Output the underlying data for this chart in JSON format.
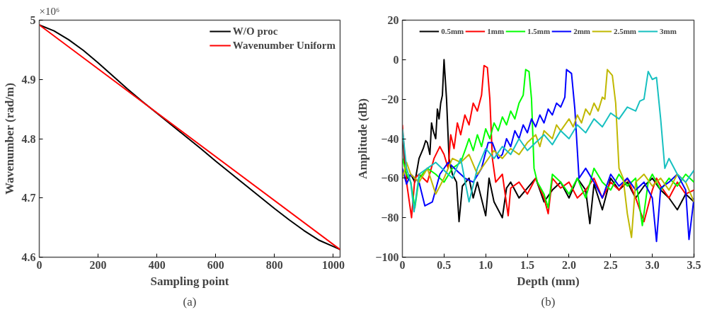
{
  "chart_data": [
    {
      "type": "line",
      "xlabel": "Sampling point",
      "ylabel": "Wavenumber (rad/m)",
      "xlim": [
        0,
        1023
      ],
      "ylim": [
        4.6,
        5
      ],
      "xticks": [
        0,
        200,
        400,
        600,
        800,
        1000
      ],
      "yticks": [
        4.6,
        4.7,
        4.8,
        4.9,
        5
      ],
      "grid": false,
      "legend": "top right",
      "line_style": "solid",
      "marker": "none",
      "annotations": [
        "×10⁶",
        "(a)"
      ],
      "series": [
        {
          "name": "W/O proc",
          "color": "#000000",
          "x": [
            0,
            50,
            100,
            150,
            200,
            250,
            300,
            350,
            400,
            450,
            500,
            550,
            600,
            650,
            700,
            750,
            800,
            850,
            900,
            950,
            1000,
            1023
          ],
          "values": [
            4.992,
            4.982,
            4.967,
            4.949,
            4.928,
            4.906,
            4.884,
            4.863,
            4.843,
            4.823,
            4.803,
            4.783,
            4.762,
            4.742,
            4.722,
            4.702,
            4.682,
            4.663,
            4.645,
            4.629,
            4.618,
            4.613
          ]
        },
        {
          "name": "Wavenumber Uniform",
          "color": "#ff0000",
          "x": [
            0,
            1023
          ],
          "values": [
            4.992,
            4.613
          ]
        }
      ]
    },
    {
      "type": "line",
      "xlabel": "Depth (mm)",
      "ylabel": "Amplitude (dB)",
      "xlim": [
        0,
        3.5
      ],
      "ylim": [
        -100,
        20
      ],
      "xticks": [
        0,
        0.5,
        {
          "value": 1,
          "label": "1.0"
        },
        1.5,
        {
          "value": 2,
          "label": "2.0"
        },
        2.5,
        {
          "value": 3,
          "label": "3.0"
        },
        3.5
      ],
      "yticks": [
        -100,
        -80,
        -60,
        -40,
        -20,
        0,
        20
      ],
      "grid": false,
      "legend": "top",
      "line_style": "solid",
      "marker": "none",
      "annotations": [
        "(b)"
      ],
      "series": [
        {
          "name": "0.5mm",
          "color": "#000000",
          "x": [
            0,
            0.03,
            0.06,
            0.1,
            0.15,
            0.2,
            0.25,
            0.28,
            0.3,
            0.33,
            0.35,
            0.37,
            0.4,
            0.42,
            0.44,
            0.46,
            0.48,
            0.5,
            0.53,
            0.56,
            0.6,
            0.65,
            0.68,
            0.72,
            0.8,
            0.85,
            0.9,
            1.0,
            1.04,
            1.1,
            1.2,
            1.25,
            1.3,
            1.4,
            1.5,
            1.6,
            1.7,
            1.8,
            1.9,
            2.0,
            2.1,
            2.2,
            2.25,
            2.3,
            2.4,
            2.5,
            2.6,
            2.7,
            2.8,
            2.9,
            3.0,
            3.1,
            3.2,
            3.3,
            3.4,
            3.5
          ],
          "values": [
            -35,
            -55,
            -60,
            -58,
            -62,
            -50,
            -45,
            -41,
            -42,
            -48,
            -32,
            -36,
            -40,
            -25,
            -30,
            -22,
            -18,
            0,
            -20,
            -50,
            -58,
            -62,
            -82,
            -64,
            -60,
            -70,
            -62,
            -79,
            -60,
            -72,
            -80,
            -65,
            -62,
            -70,
            -65,
            -60,
            -72,
            -66,
            -62,
            -70,
            -60,
            -66,
            -83,
            -63,
            -76,
            -60,
            -66,
            -62,
            -70,
            -64,
            -60,
            -66,
            -70,
            -76,
            -68,
            -72
          ]
        },
        {
          "name": "1mm",
          "color": "#ff0000",
          "x": [
            0,
            0.05,
            0.11,
            0.15,
            0.2,
            0.3,
            0.38,
            0.45,
            0.5,
            0.55,
            0.58,
            0.62,
            0.66,
            0.7,
            0.75,
            0.8,
            0.85,
            0.9,
            0.95,
            0.98,
            1.02,
            1.05,
            1.08,
            1.12,
            1.2,
            1.27,
            1.3,
            1.4,
            1.5,
            1.6,
            1.7,
            1.75,
            1.8,
            1.9,
            2.0,
            2.1,
            2.2,
            2.3,
            2.4,
            2.5,
            2.6,
            2.7,
            2.8,
            2.9,
            3.0,
            3.05,
            3.1,
            3.2,
            3.3,
            3.4,
            3.5
          ],
          "values": [
            -33,
            -62,
            -80,
            -60,
            -58,
            -62,
            -50,
            -44,
            -48,
            -55,
            -38,
            -45,
            -32,
            -38,
            -28,
            -33,
            -22,
            -26,
            -18,
            -3,
            -4,
            -20,
            -50,
            -62,
            -58,
            -79,
            -65,
            -62,
            -68,
            -60,
            -70,
            -78,
            -60,
            -65,
            -62,
            -70,
            -66,
            -60,
            -70,
            -62,
            -66,
            -60,
            -70,
            -82,
            -66,
            -60,
            -64,
            -70,
            -62,
            -68,
            -66
          ]
        },
        {
          "name": "1.5mm",
          "color": "#00ff00",
          "x": [
            0,
            0.05,
            0.1,
            0.15,
            0.2,
            0.3,
            0.4,
            0.5,
            0.6,
            0.7,
            0.76,
            0.8,
            0.85,
            0.9,
            0.95,
            1.0,
            1.05,
            1.1,
            1.15,
            1.2,
            1.25,
            1.3,
            1.35,
            1.4,
            1.45,
            1.48,
            1.52,
            1.55,
            1.58,
            1.62,
            1.7,
            1.75,
            1.8,
            1.9,
            2.0,
            2.1,
            2.2,
            2.3,
            2.4,
            2.5,
            2.6,
            2.7,
            2.8,
            2.88,
            2.95,
            3.0,
            3.1,
            3.2,
            3.3,
            3.4,
            3.5
          ],
          "values": [
            -50,
            -58,
            -62,
            -75,
            -60,
            -55,
            -58,
            -62,
            -55,
            -52,
            -45,
            -40,
            -46,
            -38,
            -44,
            -35,
            -40,
            -32,
            -36,
            -29,
            -33,
            -26,
            -30,
            -22,
            -18,
            -5,
            -6,
            -20,
            -55,
            -62,
            -68,
            -75,
            -58,
            -62,
            -68,
            -60,
            -70,
            -55,
            -62,
            -66,
            -58,
            -64,
            -60,
            -84,
            -62,
            -58,
            -66,
            -60,
            -64,
            -58,
            -62
          ]
        },
        {
          "name": "2mm",
          "color": "#0000ff",
          "x": [
            0,
            0.05,
            0.1,
            0.2,
            0.27,
            0.36,
            0.45,
            0.55,
            0.65,
            0.75,
            0.85,
            0.95,
            1.03,
            1.08,
            1.15,
            1.2,
            1.25,
            1.3,
            1.35,
            1.4,
            1.45,
            1.5,
            1.55,
            1.6,
            1.65,
            1.7,
            1.75,
            1.8,
            1.85,
            1.9,
            1.95,
            1.97,
            2.03,
            2.07,
            2.12,
            2.2,
            2.3,
            2.4,
            2.5,
            2.6,
            2.7,
            2.8,
            2.9,
            3.0,
            3.05,
            3.1,
            3.2,
            3.3,
            3.4,
            3.44,
            3.5
          ],
          "values": [
            -55,
            -63,
            -58,
            -62,
            -74,
            -72,
            -58,
            -52,
            -56,
            -60,
            -62,
            -55,
            -42,
            -42,
            -50,
            -48,
            -40,
            -44,
            -36,
            -40,
            -33,
            -37,
            -30,
            -34,
            -28,
            -32,
            -25,
            -28,
            -22,
            -24,
            -19,
            -5,
            -7,
            -25,
            -60,
            -55,
            -62,
            -70,
            -58,
            -64,
            -60,
            -66,
            -62,
            -70,
            -92,
            -65,
            -62,
            -58,
            -66,
            -91,
            -70
          ]
        },
        {
          "name": "2.5mm",
          "color": "#c0b800",
          "x": [
            0,
            0.05,
            0.1,
            0.2,
            0.3,
            0.4,
            0.5,
            0.6,
            0.7,
            0.8,
            0.9,
            1.0,
            1.1,
            1.2,
            1.3,
            1.4,
            1.5,
            1.6,
            1.65,
            1.7,
            1.8,
            1.85,
            1.9,
            2.0,
            2.05,
            2.1,
            2.15,
            2.2,
            2.25,
            2.3,
            2.35,
            2.4,
            2.43,
            2.46,
            2.52,
            2.56,
            2.6,
            2.65,
            2.7,
            2.75,
            2.8,
            2.9,
            3.0,
            3.1,
            3.2,
            3.3,
            3.4,
            3.5
          ],
          "values": [
            -60,
            -52,
            -58,
            -62,
            -55,
            -68,
            -60,
            -50,
            -52,
            -48,
            -58,
            -52,
            -46,
            -50,
            -45,
            -48,
            -42,
            -38,
            -44,
            -36,
            -40,
            -33,
            -36,
            -30,
            -34,
            -28,
            -32,
            -25,
            -28,
            -22,
            -26,
            -19,
            -20,
            -5,
            -8,
            -22,
            -55,
            -60,
            -78,
            -90,
            -62,
            -58,
            -64,
            -60,
            -66,
            -58,
            -62,
            -72
          ]
        },
        {
          "name": "3mm",
          "color": "#17c0c0",
          "x": [
            0,
            0.05,
            0.1,
            0.14,
            0.2,
            0.3,
            0.4,
            0.5,
            0.6,
            0.7,
            0.8,
            0.9,
            1.0,
            1.1,
            1.2,
            1.3,
            1.4,
            1.5,
            1.6,
            1.7,
            1.8,
            1.9,
            2.0,
            2.1,
            2.2,
            2.3,
            2.4,
            2.5,
            2.6,
            2.7,
            2.8,
            2.85,
            2.9,
            2.95,
            3.0,
            3.05,
            3.1,
            3.15,
            3.2,
            3.3,
            3.4,
            3.5
          ],
          "values": [
            -35,
            -55,
            -62,
            -77,
            -58,
            -55,
            -52,
            -56,
            -60,
            -50,
            -72,
            -55,
            -45,
            -50,
            -44,
            -48,
            -40,
            -46,
            -42,
            -38,
            -43,
            -36,
            -40,
            -33,
            -37,
            -30,
            -34,
            -27,
            -30,
            -24,
            -26,
            -21,
            -20,
            -6,
            -10,
            -9,
            -30,
            -55,
            -50,
            -58,
            -62,
            -56
          ]
        }
      ]
    }
  ]
}
